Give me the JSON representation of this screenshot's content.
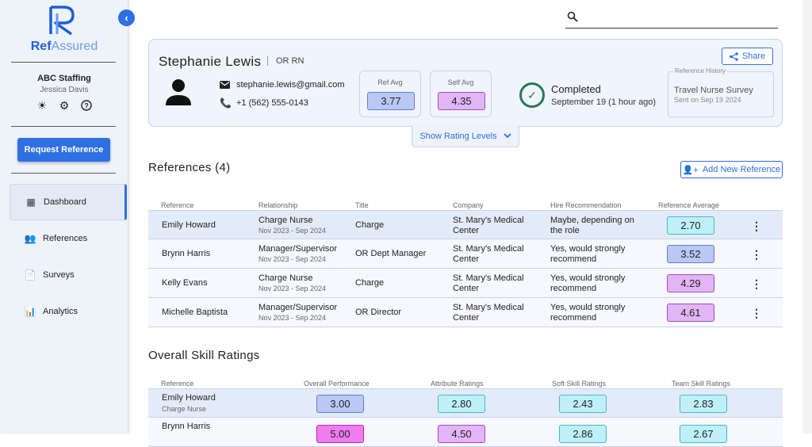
{
  "sidebar": {
    "logo_bold": "Ref",
    "logo_light": "Assured",
    "org": "ABC Staffing",
    "user": "Jessica Davis",
    "request_btn": "Request Reference",
    "nav": [
      {
        "label": "Dashboard",
        "icon": "dashboard-icon"
      },
      {
        "label": "References",
        "icon": "people-icon"
      },
      {
        "label": "Surveys",
        "icon": "document-icon"
      },
      {
        "label": "Analytics",
        "icon": "bar-chart-icon"
      }
    ]
  },
  "profile": {
    "name": "Stephanie Lewis",
    "role": "OR RN",
    "email": "stephanie.lewis@gmail.com",
    "phone": "+1 (562) 555-0143",
    "ref_avg_label": "Ref Avg",
    "ref_avg": "3.77",
    "self_avg_label": "Self Avg",
    "self_avg": "4.35",
    "status": "Completed",
    "status_date": "September 19 (1 hour ago)",
    "history_label": "Reference History",
    "history_title": "Travel Nurse Survey",
    "history_date": "Sent on Sep 19 2024",
    "share": "Share",
    "show_levels": "Show Rating Levels"
  },
  "references": {
    "title": "References (4)",
    "add_btn": "Add New Reference",
    "headers": [
      "Reference",
      "Relationship",
      "Title",
      "Company",
      "Hire Recommendation",
      "Reference Average"
    ],
    "rows": [
      {
        "name": "Emily Howard",
        "rel": "Charge Nurse",
        "dates": "Nov 2023 - Sep 2024",
        "title": "Charge",
        "company1": "St. Mary's Medical",
        "company2": "Center",
        "rec1": "Maybe, depending on",
        "rec2": "the role",
        "avg": "2.70"
      },
      {
        "name": "Brynn Harris",
        "rel": "Manager/Supervisor",
        "dates": "Nov 2023 - Sep 2024",
        "title": "OR Dept Manager",
        "company1": "St. Mary's Medical",
        "company2": "Center",
        "rec1": "Yes, would strongly",
        "rec2": "recommend",
        "avg": "3.52"
      },
      {
        "name": "Kelly Evans",
        "rel": "Charge Nurse",
        "dates": "Nov 2023 - Sep 2024",
        "title": "Charge",
        "company1": "St. Mary's Medical",
        "company2": "Center",
        "rec1": "Yes, would strongly",
        "rec2": "recommend",
        "avg": "4.29"
      },
      {
        "name": "Michelle Baptista",
        "rel": "Manager/Supervisor",
        "dates": "Nov 2023 - Sep 2024",
        "title": "OR Director",
        "company1": "St. Mary's Medical",
        "company2": "Center",
        "rec1": "Yes, would strongly",
        "rec2": "recommend",
        "avg": "4.61"
      }
    ]
  },
  "skills": {
    "title": "Overall Skill Ratings",
    "headers": [
      "Reference",
      "Overall Performance",
      "Attribute Ratings",
      "Soft Skill Ratings",
      "Team Skill Ratings"
    ],
    "rows": [
      {
        "name": "Emily Howard",
        "rel": "Charge Nurse",
        "overall": "3.00",
        "attribute": "2.80",
        "soft": "2.43",
        "team": "2.83"
      },
      {
        "name": "Brynn Harris",
        "rel": "",
        "overall": "5.00",
        "attribute": "4.50",
        "soft": "2.86",
        "team": "2.67"
      }
    ]
  },
  "colors": {
    "accent": "#2f6fe4",
    "rating_cyan": "#bff0f8",
    "rating_blue": "#b9c8f5",
    "rating_purple": "#e2b5f5",
    "rating_magenta": "#f07cf0",
    "completed_green": "#2a7a52"
  }
}
